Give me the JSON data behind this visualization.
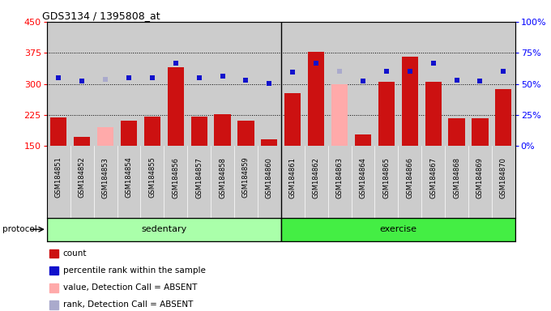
{
  "title": "GDS3134 / 1395808_at",
  "samples": [
    "GSM184851",
    "GSM184852",
    "GSM184853",
    "GSM184854",
    "GSM184855",
    "GSM184856",
    "GSM184857",
    "GSM184858",
    "GSM184859",
    "GSM184860",
    "GSM184861",
    "GSM184862",
    "GSM184863",
    "GSM184864",
    "GSM184865",
    "GSM184866",
    "GSM184867",
    "GSM184868",
    "GSM184869",
    "GSM184870"
  ],
  "count_values": [
    220,
    172,
    null,
    212,
    222,
    340,
    222,
    228,
    212,
    167,
    278,
    378,
    null,
    178,
    305,
    365,
    305,
    218,
    218,
    288
  ],
  "absent_value": [
    null,
    null,
    195,
    null,
    null,
    null,
    null,
    null,
    null,
    null,
    null,
    null,
    300,
    null,
    null,
    null,
    null,
    null,
    null,
    null
  ],
  "percentile_rank": [
    315,
    307,
    null,
    315,
    315,
    350,
    315,
    318,
    310,
    302,
    328,
    350,
    null,
    307,
    330,
    330,
    350,
    310,
    308,
    330
  ],
  "absent_rank": [
    null,
    null,
    312,
    null,
    null,
    null,
    null,
    null,
    null,
    null,
    null,
    null,
    330,
    null,
    null,
    null,
    null,
    null,
    null,
    null
  ],
  "protocol_groups": [
    {
      "label": "sedentary",
      "start": 0,
      "end": 9
    },
    {
      "label": "exercise",
      "start": 10,
      "end": 19
    }
  ],
  "ylim_left": [
    150,
    450
  ],
  "yticks_left": [
    150,
    225,
    300,
    375,
    450
  ],
  "yticks_right": [
    0,
    25,
    50,
    75,
    100
  ],
  "bar_color": "#cc1111",
  "absent_bar_color": "#ffaaaa",
  "dot_color": "#1111cc",
  "absent_dot_color": "#aaaacc",
  "col_bg_odd": "#d0d0d0",
  "col_bg_even": "#e0e0e0",
  "protocol_color_sedentary": "#aaffaa",
  "protocol_color_exercise": "#44ee44",
  "protocol_border": "#000000",
  "legend_items": [
    {
      "color": "#cc1111",
      "label": "count"
    },
    {
      "color": "#1111cc",
      "label": "percentile rank within the sample"
    },
    {
      "color": "#ffaaaa",
      "label": "value, Detection Call = ABSENT"
    },
    {
      "color": "#aaaacc",
      "label": "rank, Detection Call = ABSENT"
    }
  ]
}
